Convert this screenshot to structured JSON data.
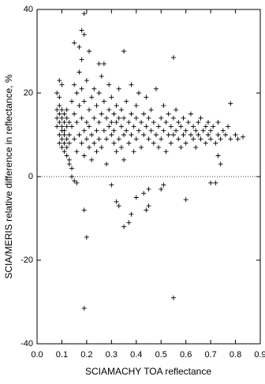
{
  "chart_data": {
    "type": "scatter",
    "x_label": "SCIAMACHY TOA reflectance",
    "y_label": "SCIA/MERIS relative difference in reflectance, %",
    "xlim": [
      0,
      0.9
    ],
    "ylim": [
      -40,
      40
    ],
    "xticks": [
      {
        "value": 0,
        "label": "0.0"
      },
      0.1,
      0.2,
      0.3,
      0.4,
      0.5,
      0.6,
      0.7,
      0.8,
      0.9
    ],
    "yticks": [
      -40,
      -20,
      0,
      20,
      40
    ],
    "color": "#000000",
    "zero_line": true,
    "series": [
      {
        "x": [
          0.19,
          0.18,
          0.19,
          0.15,
          0.17,
          0.21,
          0.35,
          0.55,
          0.18,
          0.25,
          0.27,
          0.19,
          0.2,
          0.19,
          0.55,
          0.6,
          0.35,
          0.37,
          0.38,
          0.4,
          0.43,
          0.44,
          0.45,
          0.45,
          0.32,
          0.33,
          0.5,
          0.51,
          0.3,
          0.7,
          0.72,
          0.78,
          0.83,
          0.08,
          0.08,
          0.08,
          0.09,
          0.09,
          0.09,
          0.09,
          0.09,
          0.1,
          0.1,
          0.1,
          0.1,
          0.1,
          0.1,
          0.11,
          0.11,
          0.11,
          0.11,
          0.11,
          0.11,
          0.12,
          0.12,
          0.12,
          0.12,
          0.12,
          0.12,
          0.13,
          0.13,
          0.13,
          0.13,
          0.08,
          0.09,
          0.1,
          0.09,
          0.13,
          0.14,
          0.14,
          0.15,
          0.16,
          0.14,
          0.14,
          0.15,
          0.15,
          0.15,
          0.16,
          0.16,
          0.16,
          0.17,
          0.17,
          0.17,
          0.18,
          0.18,
          0.18,
          0.19,
          0.19,
          0.19,
          0.2,
          0.2,
          0.2,
          0.21,
          0.21,
          0.21,
          0.22,
          0.22,
          0.22,
          0.23,
          0.23,
          0.23,
          0.24,
          0.24,
          0.24,
          0.25,
          0.25,
          0.25,
          0.26,
          0.26,
          0.26,
          0.27,
          0.27,
          0.28,
          0.28,
          0.28,
          0.29,
          0.29,
          0.29,
          0.3,
          0.3,
          0.3,
          0.31,
          0.31,
          0.31,
          0.32,
          0.32,
          0.32,
          0.33,
          0.33,
          0.33,
          0.34,
          0.34,
          0.34,
          0.35,
          0.35,
          0.35,
          0.36,
          0.36,
          0.37,
          0.37,
          0.38,
          0.38,
          0.38,
          0.39,
          0.39,
          0.4,
          0.4,
          0.4,
          0.41,
          0.41,
          0.42,
          0.42,
          0.43,
          0.43,
          0.44,
          0.44,
          0.45,
          0.45,
          0.46,
          0.46,
          0.47,
          0.47,
          0.48,
          0.48,
          0.49,
          0.49,
          0.5,
          0.5,
          0.51,
          0.51,
          0.52,
          0.52,
          0.53,
          0.53,
          0.54,
          0.54,
          0.55,
          0.55,
          0.56,
          0.56,
          0.57,
          0.57,
          0.58,
          0.58,
          0.59,
          0.59,
          0.6,
          0.6,
          0.61,
          0.62,
          0.62,
          0.63,
          0.63,
          0.64,
          0.64,
          0.65,
          0.65,
          0.66,
          0.66,
          0.67,
          0.68,
          0.68,
          0.69,
          0.69,
          0.7,
          0.7,
          0.71,
          0.72,
          0.73,
          0.73,
          0.74,
          0.75,
          0.76,
          0.77,
          0.78,
          0.8,
          0.81,
          0.73,
          0.74
        ],
        "values": [
          39,
          35,
          34,
          32,
          31,
          30,
          30,
          28.5,
          28,
          27,
          27,
          -8,
          -14.5,
          -31.5,
          -29,
          -5.5,
          -12,
          -11,
          -9,
          -5,
          -4,
          -8,
          -7,
          -3,
          -6,
          -7,
          -3,
          -2,
          -2,
          -1.5,
          -1.5,
          17.5,
          9.5,
          14,
          12,
          16,
          10,
          13,
          15,
          8,
          17,
          9,
          11,
          14,
          16,
          7,
          12,
          10,
          13,
          15,
          8,
          6,
          11,
          9,
          12,
          14,
          5,
          16,
          7,
          10,
          4,
          13,
          8,
          20,
          23,
          22,
          19,
          3,
          2,
          0,
          -1,
          -1.5,
          12,
          18,
          9,
          15,
          22,
          6,
          13,
          20,
          10,
          17,
          25,
          8,
          14,
          21,
          11,
          5,
          18,
          13,
          9,
          23,
          16,
          7,
          12,
          19,
          10,
          4,
          14,
          8,
          21,
          11,
          17,
          6,
          13,
          9,
          20,
          15,
          7,
          24,
          11,
          18,
          9,
          14,
          3,
          16,
          12,
          22,
          10,
          13,
          19,
          8,
          15,
          11,
          17,
          6,
          13,
          9,
          14,
          21,
          12,
          7,
          16,
          10,
          14,
          4,
          11,
          18,
          8,
          13,
          15,
          10,
          22,
          12,
          6,
          14,
          9,
          17,
          11,
          20,
          13,
          7,
          10,
          15,
          12,
          19,
          9,
          14,
          11,
          16,
          8,
          13,
          10,
          21,
          12,
          7,
          14,
          9,
          11,
          17,
          13,
          6,
          10,
          15,
          12,
          8,
          14,
          10,
          11,
          16,
          9,
          13,
          12,
          7,
          10,
          14,
          11,
          8,
          13,
          10,
          15,
          9,
          12,
          11,
          7,
          13,
          10,
          9,
          14,
          11,
          8,
          12,
          10,
          13,
          9,
          11,
          12,
          8,
          10,
          13,
          9,
          11,
          10,
          12,
          9,
          10,
          9,
          5,
          3
        ]
      }
    ]
  }
}
